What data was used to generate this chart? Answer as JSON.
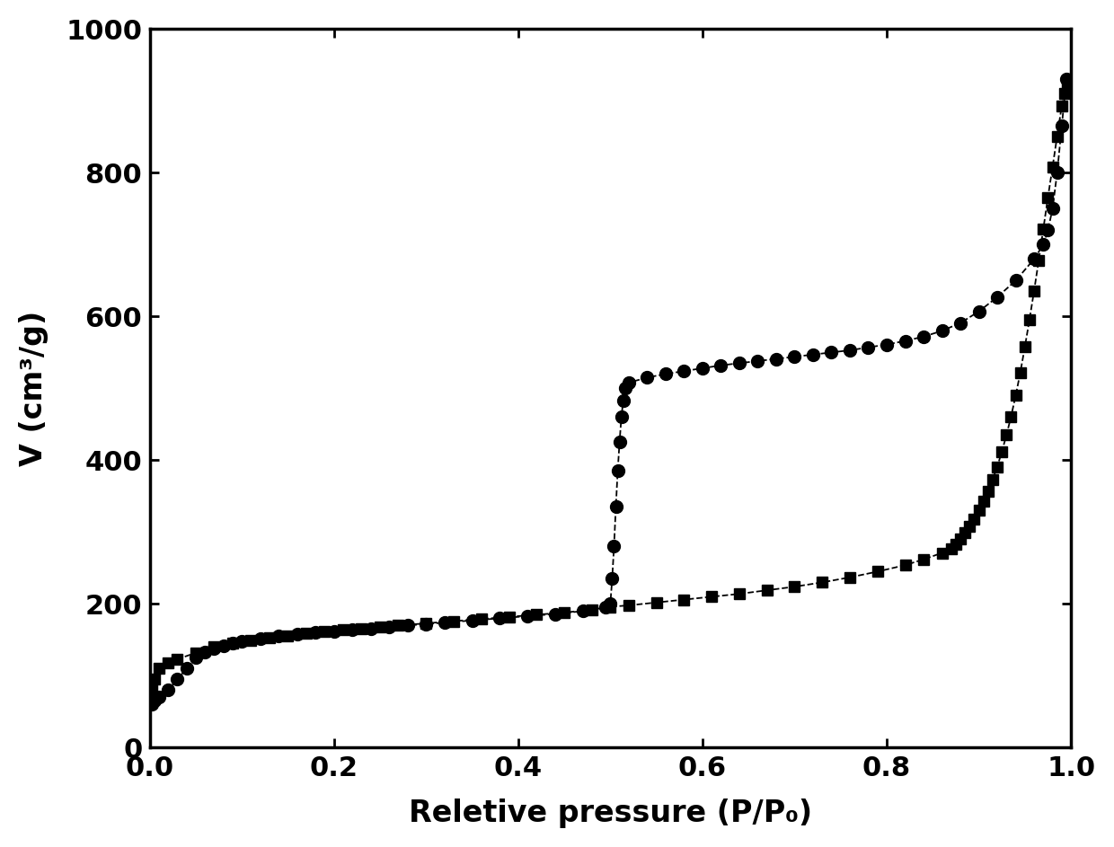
{
  "title": "",
  "xlabel": "Reletive pressure (P/P₀)",
  "ylabel": "V (cm³/g)",
  "xlim": [
    0.0,
    1.0
  ],
  "ylim": [
    0,
    1000
  ],
  "yticks": [
    0,
    200,
    400,
    600,
    800,
    1000
  ],
  "xticks": [
    0.0,
    0.2,
    0.4,
    0.6,
    0.8,
    1.0
  ],
  "background_color": "#ffffff",
  "circle_adsorption_x": [
    0.002,
    0.005,
    0.01,
    0.02,
    0.03,
    0.04,
    0.05,
    0.06,
    0.07,
    0.08,
    0.09,
    0.1,
    0.12,
    0.14,
    0.16,
    0.18,
    0.2,
    0.22,
    0.24,
    0.26,
    0.28,
    0.3,
    0.32,
    0.35,
    0.38,
    0.41,
    0.44,
    0.47,
    0.495,
    0.5,
    0.502,
    0.504,
    0.506,
    0.508,
    0.51,
    0.512,
    0.514,
    0.516,
    0.52,
    0.54,
    0.56,
    0.58,
    0.6,
    0.62,
    0.64,
    0.66,
    0.68,
    0.7,
    0.72,
    0.74,
    0.76,
    0.78,
    0.8,
    0.82,
    0.84,
    0.86,
    0.88,
    0.9,
    0.92,
    0.94,
    0.96,
    0.97,
    0.975,
    0.98,
    0.985,
    0.99,
    0.995
  ],
  "circle_adsorption_y": [
    60,
    65,
    70,
    80,
    95,
    110,
    125,
    133,
    138,
    142,
    145,
    148,
    152,
    155,
    158,
    160,
    162,
    164,
    166,
    168,
    170,
    172,
    174,
    177,
    180,
    183,
    186,
    190,
    195,
    200,
    235,
    280,
    335,
    385,
    425,
    460,
    483,
    500,
    508,
    515,
    520,
    524,
    528,
    532,
    535,
    538,
    541,
    544,
    547,
    550,
    553,
    557,
    561,
    566,
    572,
    580,
    591,
    607,
    627,
    650,
    680,
    700,
    720,
    750,
    800,
    865,
    930
  ],
  "square_desorption_x": [
    0.002,
    0.005,
    0.01,
    0.02,
    0.03,
    0.05,
    0.07,
    0.09,
    0.11,
    0.13,
    0.15,
    0.17,
    0.19,
    0.21,
    0.23,
    0.25,
    0.27,
    0.3,
    0.33,
    0.36,
    0.39,
    0.42,
    0.45,
    0.48,
    0.5,
    0.52,
    0.55,
    0.58,
    0.61,
    0.64,
    0.67,
    0.7,
    0.73,
    0.76,
    0.79,
    0.82,
    0.84,
    0.86,
    0.87,
    0.875,
    0.88,
    0.885,
    0.89,
    0.895,
    0.9,
    0.905,
    0.91,
    0.915,
    0.92,
    0.925,
    0.93,
    0.935,
    0.94,
    0.945,
    0.95,
    0.955,
    0.96,
    0.965,
    0.97,
    0.975,
    0.98,
    0.985,
    0.99,
    0.993,
    0.996,
    0.999
  ],
  "square_desorption_y": [
    80,
    95,
    110,
    118,
    123,
    132,
    140,
    145,
    149,
    153,
    156,
    159,
    162,
    164,
    166,
    168,
    170,
    173,
    176,
    179,
    182,
    185,
    188,
    192,
    196,
    198,
    202,
    206,
    210,
    214,
    219,
    224,
    230,
    237,
    245,
    254,
    262,
    271,
    277,
    283,
    291,
    299,
    308,
    318,
    330,
    343,
    357,
    373,
    391,
    412,
    435,
    461,
    490,
    522,
    558,
    596,
    636,
    678,
    722,
    766,
    808,
    851,
    893,
    910,
    922,
    930
  ]
}
